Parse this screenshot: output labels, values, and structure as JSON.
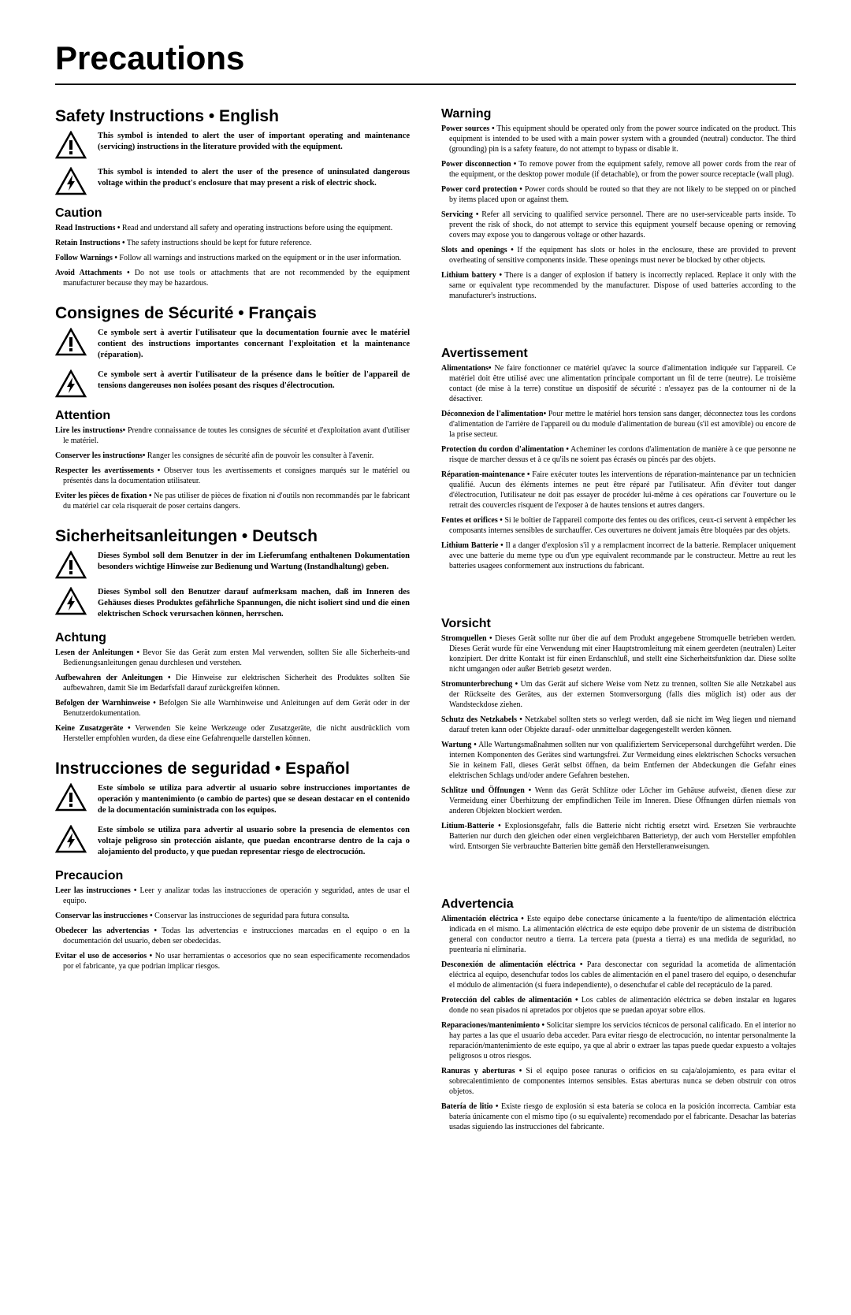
{
  "title": "Precautions",
  "left": {
    "english": {
      "heading": "Safety Instructions • English",
      "symbol1": "This symbol is intended to alert the user of important operating and maintenance (servicing) instructions in the literature provided with the equipment.",
      "symbol2": "This symbol is intended to alert the user of the presence of uninsulated dangerous voltage within the product's enclosure that may present a risk of electric shock.",
      "caution": "Caution",
      "items": [
        {
          "lead": "Read Instructions •",
          "body": " Read and understand all safety and operating instructions before using the equipment."
        },
        {
          "lead": "Retain Instructions •",
          "body": " The safety instructions should be kept for future reference."
        },
        {
          "lead": "Follow Warnings •",
          "body": " Follow all warnings and instructions marked on the equipment or in the user information."
        },
        {
          "lead": "Avoid Attachments •",
          "body": " Do not use tools or attachments that are not recommended by the equipment manufacturer because they may be hazardous."
        }
      ]
    },
    "french": {
      "heading": "Consignes de Sécurité • Français",
      "symbol1": "Ce symbole sert à avertir l'utilisateur que la documentation fournie avec le matériel contient des instructions importantes concernant l'exploitation et la maintenance (réparation).",
      "symbol2": "Ce symbole sert à avertir l'utilisateur de la présence dans le boîtier de l'appareil de tensions dangereuses non isolées posant des risques d'électrocution.",
      "caution": "Attention",
      "items": [
        {
          "lead": "Lire les instructions•",
          "body": " Prendre connaissance de toutes les consignes de sécurité et d'exploitation avant d'utiliser le matériel."
        },
        {
          "lead": "Conserver les instructions•",
          "body": " Ranger les consignes de sécurité afin de pouvoir les consulter à l'avenir."
        },
        {
          "lead": "Respecter les avertissements •",
          "body": " Observer tous les avertissements et consignes marqués sur le matériel ou présentés dans la documentation utilisateur."
        },
        {
          "lead": "Eviter les pièces de fixation •",
          "body": " Ne pas utiliser de pièces de fixation ni d'outils non recommandés par le fabricant du matériel car cela risquerait de poser certains dangers."
        }
      ]
    },
    "german": {
      "heading": "Sicherheitsanleitungen • Deutsch",
      "symbol1": "Dieses Symbol soll dem Benutzer in der im Lieferumfang enthaltenen Dokumentation besonders wichtige Hinweise zur Bedienung und Wartung (Instandhaltung) geben.",
      "symbol2": "Dieses Symbol soll den Benutzer darauf aufmerksam machen, daß im Inneren des Gehäuses dieses Produktes gefährliche Spannungen, die nicht isoliert sind und die einen elektrischen Schock verursachen können, herrschen.",
      "caution": "Achtung",
      "items": [
        {
          "lead": "Lesen der Anleitungen •",
          "body": " Bevor Sie das Gerät zum ersten Mal verwenden, sollten Sie alle Sicherheits-und Bedienungsanleitungen genau durchlesen und verstehen."
        },
        {
          "lead": "Aufbewahren der Anleitungen •",
          "body": " Die Hinweise zur elektrischen Sicherheit des Produktes sollten Sie aufbewahren, damit Sie im Bedarfsfall darauf zurückgreifen können."
        },
        {
          "lead": "Befolgen der Warnhinweise •",
          "body": " Befolgen Sie alle Warnhinweise und Anleitungen auf dem Gerät oder in der Benutzerdokumentation."
        },
        {
          "lead": "Keine Zusatzgeräte •",
          "body": " Verwenden Sie keine Werkzeuge oder Zusatzgeräte, die nicht ausdrücklich vom Hersteller empfohlen wurden, da diese eine Gefahrenquelle darstellen können."
        }
      ]
    },
    "spanish": {
      "heading": "Instrucciones de seguridad • Español",
      "symbol1": "Este símbolo se utiliza para advertir al usuario sobre instrucciones importantes de operación y mantenimiento (o cambio de partes) que se desean destacar en el contenido de la documentación suministrada con los equipos.",
      "symbol2": "Este símbolo se utiliza para advertir al usuario sobre la presencia de elementos con voltaje peligroso sin protección aislante, que puedan encontrarse dentro de la caja o alojamiento del producto, y que puedan representar riesgo de electrocución.",
      "caution": "Precaucion",
      "items": [
        {
          "lead": "Leer las instrucciones •",
          "body": " Leer y analizar todas las instrucciones de operación y seguridad, antes de usar el equipo."
        },
        {
          "lead": "Conservar las instrucciones •",
          "body": " Conservar las instrucciones de seguridad para futura consulta."
        },
        {
          "lead": "Obedecer las advertencias •",
          "body": " Todas las advertencias e instrucciones marcadas en el equipo o en la documentación del usuario, deben ser obedecidas."
        },
        {
          "lead": "Evitar el uso de accesorios •",
          "body": " No usar herramientas o accesorios que no sean especificamente recomendados por el fabricante, ya que podrian implicar riesgos."
        }
      ]
    }
  },
  "right": {
    "warning_en": {
      "heading": "Warning",
      "items": [
        {
          "lead": "Power sources •",
          "body": " This equipment should be operated only from the power source indicated on the product. This equipment is intended to be used with a main power system with a grounded (neutral) conductor. The third (grounding) pin is a safety feature, do not attempt to bypass or disable it."
        },
        {
          "lead": "Power disconnection •",
          "body": " To remove power from the equipment safely, remove all power cords from the rear of the equipment, or the desktop power module (if detachable), or from the power source receptacle (wall plug)."
        },
        {
          "lead": "Power cord protection •",
          "body": " Power cords should be routed so that they are not likely to be stepped on or pinched by items placed upon or against them."
        },
        {
          "lead": "Servicing •",
          "body": " Refer all servicing to qualified service personnel. There are no user-serviceable parts inside. To prevent the risk of shock, do not attempt to service this equipment yourself because opening or removing covers may expose you to dangerous voltage or other hazards."
        },
        {
          "lead": "Slots and openings •",
          "body": " If the equipment has slots or holes in the enclosure, these are provided to prevent overheating of sensitive components inside. These openings must never be blocked by other objects."
        },
        {
          "lead": "Lithium battery •",
          "body": " There is a danger of explosion if battery is incorrectly replaced. Replace it only with the same or equivalent type recommended by the manufacturer. Dispose of used batteries according to the manufacturer's instructions."
        }
      ]
    },
    "warning_fr": {
      "heading": "Avertissement",
      "items": [
        {
          "lead": "Alimentations•",
          "body": " Ne faire fonctionner ce matériel qu'avec la source d'alimentation indiquée sur l'appareil. Ce matériel doit être utilisé avec une alimentation principale comportant un fil de terre (neutre). Le troisième contact (de mise à la terre) constitue un dispositif de sécurité : n'essayez pas de la contourner ni de la désactiver."
        },
        {
          "lead": "Déconnexion de l'alimentation•",
          "body": " Pour mettre le matériel hors tension sans danger, déconnectez tous les cordons d'alimentation de l'arrière de l'appareil ou du module d'alimentation de bureau (s'il est amovible) ou encore de la prise secteur."
        },
        {
          "lead": "Protection du cordon d'alimentation •",
          "body": " Acheminer les cordons d'alimentation de manière à ce que personne ne risque de marcher dessus et à ce qu'ils ne soient pas écrasés ou pincés par des objets."
        },
        {
          "lead": "Réparation-maintenance •",
          "body": " Faire exécuter toutes les interventions de réparation-maintenance par un technicien qualifié. Aucun des éléments internes ne peut être réparé par l'utilisateur. Afin d'éviter tout danger d'électrocution, l'utilisateur ne doit pas essayer de procéder lui-même à ces opérations car l'ouverture ou le retrait des couvercles risquent de l'exposer à de hautes tensions et autres dangers."
        },
        {
          "lead": "Fentes et orifices •",
          "body": " Si le boîtier de l'appareil comporte des fentes ou des orifices, ceux-ci servent à empêcher les composants internes sensibles de surchauffer. Ces ouvertures ne doivent jamais être bloquées par des objets."
        },
        {
          "lead": "Lithium Batterie •",
          "body": " Il a danger d'explosion s'il y a remplacment incorrect de la batterie. Remplacer uniquement avec une batterie du meme type ou d'un ype equivalent recommande par le constructeur. Mettre au reut les batteries usagees conformement aux instructions du fabricant."
        }
      ]
    },
    "warning_de": {
      "heading": "Vorsicht",
      "items": [
        {
          "lead": "Stromquellen •",
          "body": " Dieses Gerät sollte nur über die auf dem Produkt angegebene Stromquelle betrieben werden. Dieses Gerät wurde für eine Verwendung mit einer Hauptstromleitung mit einem geerdeten (neutralen) Leiter konzipiert. Der dritte Kontakt ist für einen Erdanschluß, und stellt eine Sicherheitsfunktion dar. Diese sollte nicht umgangen oder außer Betrieb gesetzt werden."
        },
        {
          "lead": "Stromunterbrechung •",
          "body": " Um das Gerät auf sichere Weise vom Netz zu trennen, sollten Sie alle Netzkabel aus der Rückseite des Gerätes, aus der externen Stomversorgung (falls dies möglich ist) oder aus der Wandsteckdose ziehen."
        },
        {
          "lead": "Schutz des Netzkabels •",
          "body": " Netzkabel sollten stets so verlegt werden, daß sie nicht im Weg liegen und niemand darauf treten kann oder Objekte darauf- oder unmittelbar dagegengestellt werden können."
        },
        {
          "lead": "Wartung •",
          "body": " Alle Wartungsmaßnahmen sollten nur von qualifiziertem Servicepersonal durchgeführt werden. Die internen Komponenten des Gerätes sind wartungsfrei. Zur Vermeidung eines elektrischen Schocks versuchen Sie in keinem Fall, dieses Gerät selbst öffnen, da beim Entfernen der Abdeckungen die Gefahr eines elektrischen Schlags und/oder andere Gefahren bestehen."
        },
        {
          "lead": "Schlitze und Öffnungen •",
          "body": " Wenn das Gerät Schlitze oder Löcher im Gehäuse aufweist, dienen diese zur Vermeidung einer Überhitzung der empfindlichen Teile im Inneren. Diese Öffnungen dürfen niemals von anderen Objekten blockiert werden."
        },
        {
          "lead": "Litium-Batterie •",
          "body": " Explosionsgefahr, falls die Batterie nicht richtig ersetzt wird. Ersetzen Sie verbrauchte Batterien nur durch den gleichen oder einen vergleichbaren Batterietyp, der auch vom Hersteller empfohlen wird. Entsorgen Sie verbrauchte Batterien bitte gemäß den Herstelleranweisungen."
        }
      ]
    },
    "warning_es": {
      "heading": "Advertencia",
      "items": [
        {
          "lead": "Alimentación eléctrica •",
          "body": " Este equipo debe conectarse únicamente a la fuente/tipo de alimentación eléctrica indicada en el mismo. La alimentación eléctrica de este equipo debe provenir de un sistema de distribución general con conductor neutro a tierra. La tercera pata (puesta a tierra) es una medida de seguridad, no puentearia ni eliminaria."
        },
        {
          "lead": "Desconexión de alimentación eléctrica •",
          "body": " Para desconectar con seguridad la acometida de alimentación eléctrica al equipo, desenchufar todos los cables de alimentación en el panel trasero del equipo, o desenchufar el módulo de alimentación (si fuera independiente), o desenchufar el cable del receptáculo de la pared."
        },
        {
          "lead": "Protección del cables de alimentación •",
          "body": " Los cables de alimentación eléctrica se deben instalar en lugares donde no sean pisados ni apretados por objetos que se puedan apoyar sobre ellos."
        },
        {
          "lead": "Reparaciones/mantenimiento •",
          "body": " Solicitar siempre los servicios técnicos de personal calificado. En el interior no hay partes a las que el usuario deba acceder. Para evitar riesgo de electrocución, no intentar personalmente la reparación/mantenimiento de este equipo, ya que al abrir o extraer las tapas puede quedar expuesto a voltajes peligrosos u otros riesgos."
        },
        {
          "lead": "Ranuras y aberturas •",
          "body": " Si el equipo posee ranuras o orificios en su caja/alojamiento, es para evitar el sobrecalentimiento de componentes internos sensibles. Estas aberturas nunca se deben obstruir con otros objetos."
        },
        {
          "lead": "Batería de litio •",
          "body": " Existe riesgo de explosión si esta batería se coloca en la posición incorrecta. Cambiar esta batería únicamente con el mismo tipo (o su equivalente) recomendado por el fabricante. Desachar las baterías usadas siguiendo las instrucciones del fabricante."
        }
      ]
    }
  }
}
